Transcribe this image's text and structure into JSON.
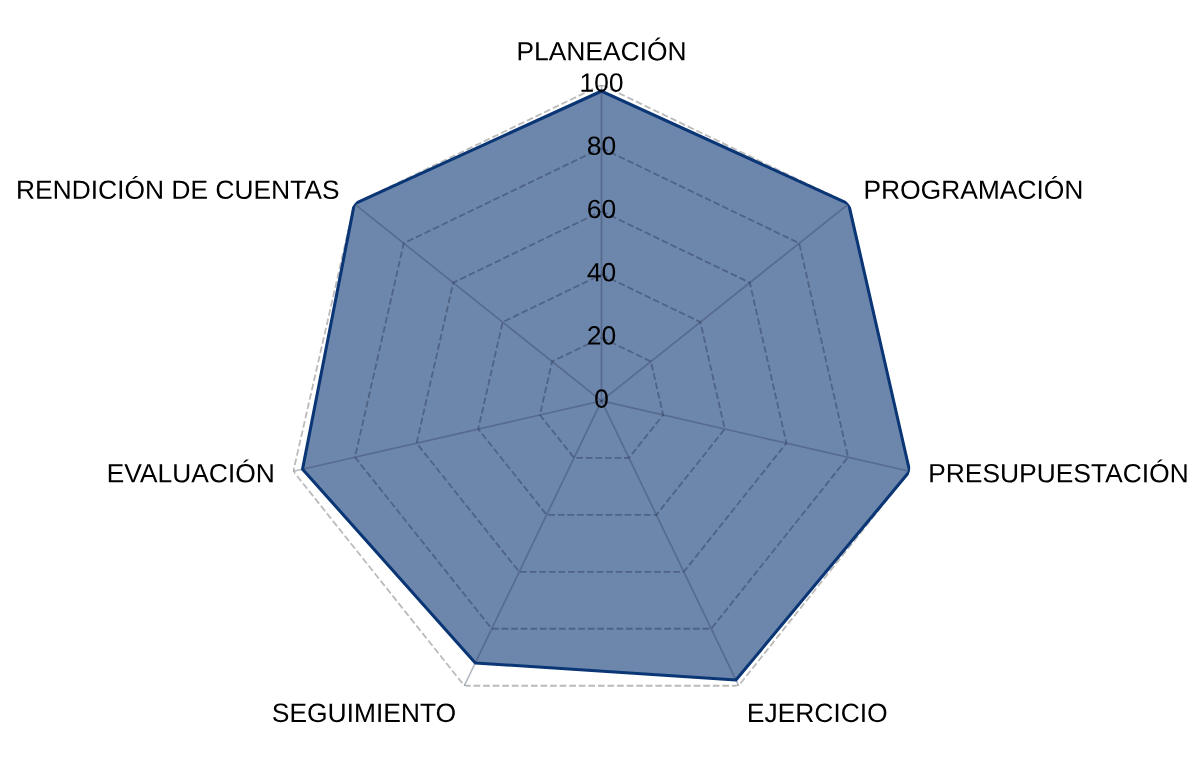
{
  "chart_data": {
    "type": "radar",
    "categories": [
      "PLANEACIÓN",
      "PROGRAMACIÓN",
      "PRESUPUESTACIÓN",
      "EJERCICIO",
      "SEGUIMIENTO",
      "EVALUACIÓN",
      "RENDICIÓN DE CUENTAS"
    ],
    "series": [
      {
        "color": "#0b3675",
        "values": [
          98,
          100,
          100,
          98,
          92,
          97,
          100
        ]
      }
    ],
    "ylim": [
      0,
      100
    ],
    "yticks": [
      0,
      20,
      40,
      60,
      80,
      100
    ],
    "grid": true,
    "line_style": "solid",
    "marker": "none"
  }
}
